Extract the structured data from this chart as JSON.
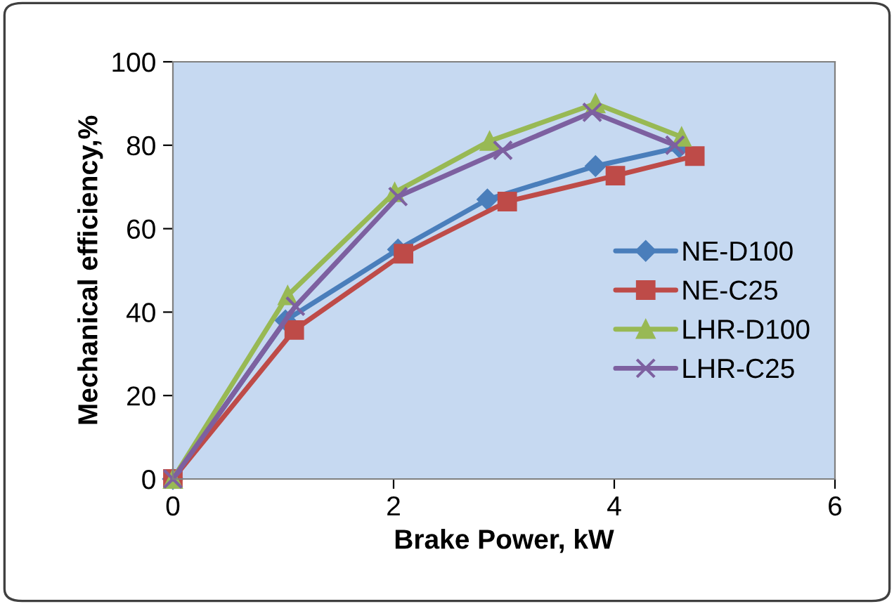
{
  "chart_data": {
    "type": "line",
    "xlabel": "Brake Power, kW",
    "ylabel": "Mechanical efficiency,%",
    "xlim": [
      0,
      6
    ],
    "xticks": [
      0,
      2,
      4,
      6
    ],
    "ylim": [
      0,
      100
    ],
    "yticks": [
      0,
      20,
      40,
      60,
      80,
      100
    ],
    "grid": false,
    "legend": "right",
    "line_style": "solid",
    "series": [
      {
        "name": "NE-D100",
        "color": "#4a7ebb",
        "marker": "diamond",
        "x": [
          0,
          1.02,
          2.04,
          2.85,
          3.83,
          4.59
        ],
        "values": [
          0,
          38,
          55,
          67,
          75,
          79.5
        ]
      },
      {
        "name": "NE-C25",
        "color": "#be4b48",
        "marker": "square",
        "x": [
          0,
          1.1,
          2.09,
          3.03,
          4.01,
          4.73
        ],
        "values": [
          0,
          35.7,
          54,
          66.5,
          72.7,
          77.4
        ]
      },
      {
        "name": "LHR-D100",
        "color": "#98b954",
        "marker": "triangle",
        "x": [
          0,
          1.04,
          2.01,
          2.87,
          3.83,
          4.61
        ],
        "values": [
          0,
          44,
          68.7,
          81,
          90,
          82
        ]
      },
      {
        "name": "LHR-C25",
        "color": "#7d60a0",
        "marker": "cross",
        "x": [
          0,
          1.11,
          2.04,
          2.99,
          3.8,
          4.55
        ],
        "values": [
          0,
          41.4,
          67.7,
          78.8,
          87.9,
          80
        ]
      }
    ]
  }
}
